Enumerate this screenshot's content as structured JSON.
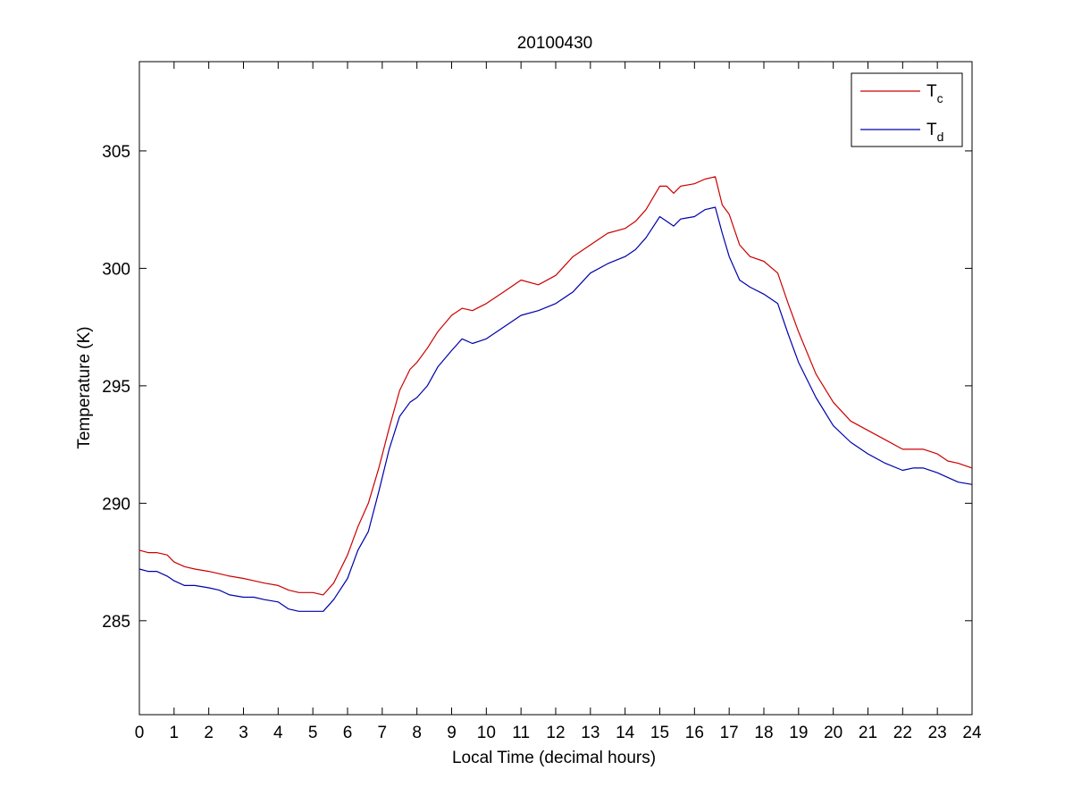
{
  "chart_data": {
    "type": "line",
    "title": "20100430",
    "xlabel": "Local Time (decimal hours)",
    "ylabel": "Temperature (K)",
    "xlim": [
      0,
      24
    ],
    "ylim": [
      281,
      308.8
    ],
    "xticks": [
      0,
      1,
      2,
      3,
      4,
      5,
      6,
      7,
      8,
      9,
      10,
      11,
      12,
      13,
      14,
      15,
      16,
      17,
      18,
      19,
      20,
      21,
      22,
      23,
      24
    ],
    "yticks": [
      285,
      290,
      295,
      300,
      305
    ],
    "grid": false,
    "legend_position": "top-right",
    "series": [
      {
        "name": "T",
        "subscript": "c",
        "color": "#cc0000",
        "x": [
          0,
          0.25,
          0.5,
          0.8,
          1.0,
          1.3,
          1.6,
          2.0,
          2.3,
          2.6,
          3.0,
          3.3,
          3.6,
          4.0,
          4.3,
          4.6,
          5.0,
          5.3,
          5.6,
          6.0,
          6.3,
          6.6,
          6.9,
          7.2,
          7.5,
          7.8,
          8.0,
          8.3,
          8.6,
          9.0,
          9.3,
          9.6,
          10.0,
          10.5,
          11.0,
          11.5,
          12.0,
          12.5,
          13.0,
          13.5,
          14.0,
          14.3,
          14.6,
          15.0,
          15.2,
          15.4,
          15.6,
          16.0,
          16.3,
          16.6,
          16.8,
          17.0,
          17.3,
          17.6,
          18.0,
          18.4,
          18.7,
          19.0,
          19.5,
          20.0,
          20.5,
          21.0,
          21.5,
          22.0,
          22.3,
          22.6,
          23.0,
          23.3,
          23.6,
          24.0
        ],
        "y": [
          288.0,
          287.9,
          287.9,
          287.8,
          287.5,
          287.3,
          287.2,
          287.1,
          287.0,
          286.9,
          286.8,
          286.7,
          286.6,
          286.5,
          286.3,
          286.2,
          286.2,
          286.1,
          286.6,
          287.8,
          289.0,
          290.0,
          291.5,
          293.2,
          294.8,
          295.7,
          296.0,
          296.6,
          297.3,
          298.0,
          298.3,
          298.2,
          298.5,
          299.0,
          299.5,
          299.3,
          299.7,
          300.5,
          301.0,
          301.5,
          301.7,
          302.0,
          302.5,
          303.5,
          303.5,
          303.2,
          303.5,
          303.6,
          303.8,
          303.9,
          302.7,
          302.3,
          301.0,
          300.5,
          300.3,
          299.8,
          298.5,
          297.3,
          295.5,
          294.3,
          293.5,
          293.1,
          292.7,
          292.3,
          292.3,
          292.3,
          292.1,
          291.8,
          291.7,
          291.5
        ]
      },
      {
        "name": "T",
        "subscript": "d",
        "color": "#0000aa",
        "x": [
          0,
          0.25,
          0.5,
          0.8,
          1.0,
          1.3,
          1.6,
          2.0,
          2.3,
          2.6,
          3.0,
          3.3,
          3.6,
          4.0,
          4.3,
          4.6,
          5.0,
          5.3,
          5.6,
          6.0,
          6.3,
          6.6,
          6.9,
          7.2,
          7.5,
          7.8,
          8.0,
          8.3,
          8.6,
          9.0,
          9.3,
          9.6,
          10.0,
          10.5,
          11.0,
          11.5,
          12.0,
          12.5,
          13.0,
          13.5,
          14.0,
          14.3,
          14.6,
          15.0,
          15.2,
          15.4,
          15.6,
          16.0,
          16.3,
          16.6,
          16.8,
          17.0,
          17.3,
          17.6,
          18.0,
          18.4,
          18.7,
          19.0,
          19.5,
          20.0,
          20.5,
          21.0,
          21.5,
          22.0,
          22.3,
          22.6,
          23.0,
          23.3,
          23.6,
          24.0
        ],
        "y": [
          287.2,
          287.1,
          287.1,
          286.9,
          286.7,
          286.5,
          286.5,
          286.4,
          286.3,
          286.1,
          286.0,
          286.0,
          285.9,
          285.8,
          285.5,
          285.4,
          285.4,
          285.4,
          285.9,
          286.8,
          288.0,
          288.8,
          290.5,
          292.3,
          293.7,
          294.3,
          294.5,
          295.0,
          295.8,
          296.5,
          297.0,
          296.8,
          297.0,
          297.5,
          298.0,
          298.2,
          298.5,
          299.0,
          299.8,
          300.2,
          300.5,
          300.8,
          301.3,
          302.2,
          302.0,
          301.8,
          302.1,
          302.2,
          302.5,
          302.6,
          301.5,
          300.5,
          299.5,
          299.2,
          298.9,
          298.5,
          297.2,
          296.0,
          294.5,
          293.3,
          292.6,
          292.1,
          291.7,
          291.4,
          291.5,
          291.5,
          291.3,
          291.1,
          290.9,
          290.8
        ]
      }
    ]
  }
}
